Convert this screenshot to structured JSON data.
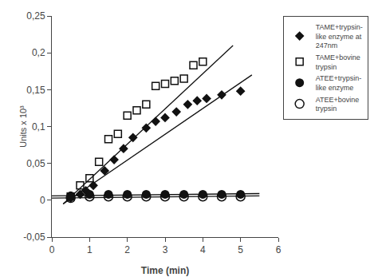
{
  "chart_data": {
    "type": "scatter",
    "xlabel": "Time (min)",
    "ylabel": "Units x 10³",
    "xlim": [
      0,
      6
    ],
    "ylim": [
      -0.05,
      0.25
    ],
    "xticks": [
      0,
      1,
      2,
      3,
      4,
      5,
      6
    ],
    "yticks": [
      {
        "value": -0.05,
        "label": "-0,05"
      },
      0,
      {
        "value": 0.05,
        "label": "0,05"
      },
      {
        "value": 0.1,
        "label": "0,1"
      },
      {
        "value": 0.15,
        "label": "0,15"
      },
      {
        "value": 0.2,
        "label": "0,2"
      },
      {
        "value": 0.25,
        "label": "0,25"
      }
    ],
    "grid": false,
    "legend": "upper right",
    "series": [
      {
        "name": "TAME+trypsin-\nlike enzyme at\n247nm",
        "color": "#111111",
        "marker": "diamond",
        "x": [
          0.5,
          0.75,
          0.9,
          1.1,
          1.4,
          1.65,
          1.9,
          2.15,
          2.5,
          2.75,
          3.0,
          3.3,
          3.6,
          3.85,
          4.1,
          4.5,
          5.0
        ],
        "values": [
          0.003,
          0.008,
          0.013,
          0.02,
          0.04,
          0.055,
          0.07,
          0.085,
          0.098,
          0.107,
          0.112,
          0.12,
          0.13,
          0.135,
          0.138,
          0.143,
          0.148
        ],
        "fit_x": [
          0.3,
          5.3
        ],
        "fit_y": [
          -0.005,
          0.17
        ]
      },
      {
        "name": "TAME+bovine\ntrypsin",
        "color": "#111111",
        "marker": "square-open",
        "x": [
          0.5,
          0.75,
          1.0,
          1.25,
          1.5,
          1.75,
          2.0,
          2.25,
          2.5,
          2.75,
          3.0,
          3.25,
          3.5,
          3.75,
          4.0
        ],
        "values": [
          0.005,
          0.02,
          0.03,
          0.052,
          0.083,
          0.09,
          0.115,
          0.122,
          0.13,
          0.155,
          0.158,
          0.162,
          0.165,
          0.183,
          0.188
        ],
        "fit_x": [
          0.3,
          4.8
        ],
        "fit_y": [
          -0.005,
          0.21
        ]
      },
      {
        "name": "ATEE+trypsin-\nlike enzyme",
        "color": "#111111",
        "marker": "circle",
        "x": [
          0.5,
          1.0,
          1.5,
          2.0,
          2.5,
          3.0,
          3.5,
          4.0,
          4.5,
          5.0
        ],
        "values": [
          0.006,
          0.008,
          0.008,
          0.008,
          0.008,
          0.008,
          0.008,
          0.008,
          0.008,
          0.008
        ],
        "fit_x": [
          0.0,
          5.5
        ],
        "fit_y": [
          0.006,
          0.009
        ]
      },
      {
        "name": "ATEE+bovine\ntrypsin",
        "color": "#111111",
        "marker": "circle-open",
        "x": [
          0.5,
          1.0,
          1.5,
          2.0,
          2.5,
          3.0,
          3.5,
          4.0,
          4.5,
          5.0
        ],
        "values": [
          0.003,
          0.005,
          0.005,
          0.005,
          0.005,
          0.005,
          0.005,
          0.005,
          0.005,
          0.005
        ],
        "fit_x": [
          0.0,
          5.5
        ],
        "fit_y": [
          0.003,
          0.006
        ]
      }
    ]
  }
}
